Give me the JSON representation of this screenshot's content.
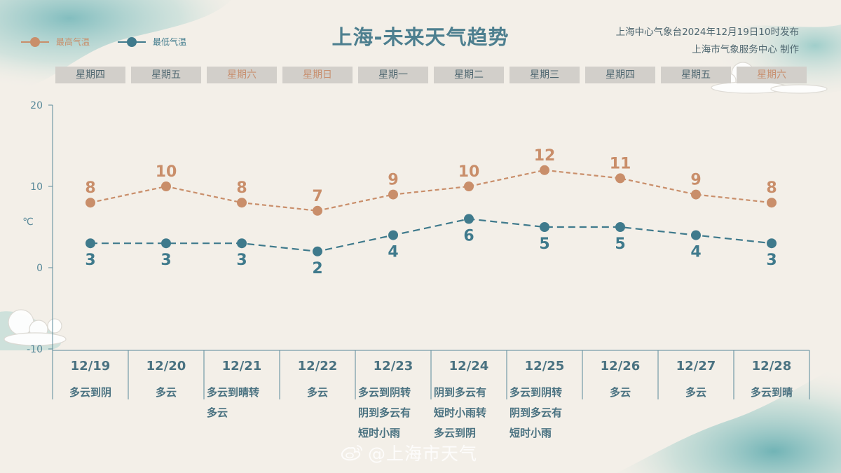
{
  "header": {
    "title": "上海-未来天气趋势",
    "issuer_line1": "上海中心气象台2024年12月19日10时发布",
    "issuer_line2": "上海市气象服务中心 制作"
  },
  "legend": {
    "high_label": "最高气温",
    "low_label": "最低气温"
  },
  "colors": {
    "high": "#c98e6a",
    "low": "#3f7a8c",
    "axis": "#5a8a9a",
    "weekday_bg": "#d2cfca",
    "background": "#f3efe8"
  },
  "weekdays": [
    {
      "label": "星期四",
      "weekend": false
    },
    {
      "label": "星期五",
      "weekend": false
    },
    {
      "label": "星期六",
      "weekend": true
    },
    {
      "label": "星期日",
      "weekend": true
    },
    {
      "label": "星期一",
      "weekend": false
    },
    {
      "label": "星期二",
      "weekend": false
    },
    {
      "label": "星期三",
      "weekend": false
    },
    {
      "label": "星期四",
      "weekend": false
    },
    {
      "label": "星期五",
      "weekend": false
    },
    {
      "label": "星期六",
      "weekend": true
    }
  ],
  "chart_data": {
    "type": "line",
    "categories": [
      "12/19",
      "12/20",
      "12/21",
      "12/22",
      "12/23",
      "12/24",
      "12/25",
      "12/26",
      "12/27",
      "12/28"
    ],
    "series": [
      {
        "name": "最高气温",
        "values": [
          8,
          10,
          8,
          7,
          9,
          10,
          12,
          11,
          9,
          8
        ]
      },
      {
        "name": "最低气温",
        "values": [
          3,
          3,
          3,
          2,
          4,
          6,
          5,
          5,
          4,
          3
        ]
      }
    ],
    "ylim": [
      -10,
      20
    ],
    "yticks": [
      20,
      10,
      0,
      -10
    ],
    "ylabel": "℃",
    "xlabel": "",
    "line_style": "dashed",
    "grid": false,
    "legend_position": "top-left"
  },
  "days": [
    {
      "date": "12/19",
      "cond": [
        "多云到阴"
      ]
    },
    {
      "date": "12/20",
      "cond": [
        "多云"
      ]
    },
    {
      "date": "12/21",
      "cond": [
        "多云到晴转",
        "多云"
      ]
    },
    {
      "date": "12/22",
      "cond": [
        "多云"
      ]
    },
    {
      "date": "12/23",
      "cond": [
        "多云到阴转",
        "阴到多云有",
        "短时小雨"
      ]
    },
    {
      "date": "12/24",
      "cond": [
        "阴到多云有",
        "短时小雨转",
        "多云到阴"
      ]
    },
    {
      "date": "12/25",
      "cond": [
        "多云到阴转",
        "阴到多云有",
        "短时小雨"
      ]
    },
    {
      "date": "12/26",
      "cond": [
        "多云"
      ]
    },
    {
      "date": "12/27",
      "cond": [
        "多云"
      ]
    },
    {
      "date": "12/28",
      "cond": [
        "多云到晴"
      ]
    }
  ],
  "watermark": {
    "text": "@上海市天气",
    "icon": "weibo-icon"
  }
}
